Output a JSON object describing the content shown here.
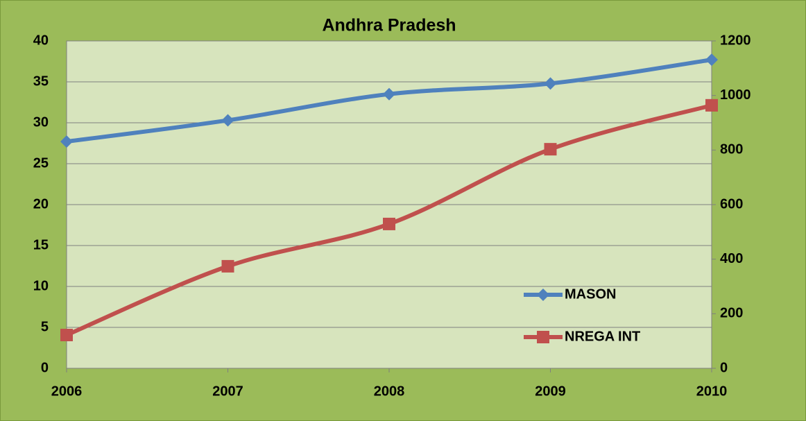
{
  "chart_data": {
    "type": "line",
    "title": "Andhra Pradesh",
    "x": [
      2006,
      2007,
      2008,
      2009,
      2010
    ],
    "xlim": [
      2006,
      2010
    ],
    "xticks": [
      2006,
      2007,
      2008,
      2009,
      2010
    ],
    "ylim": [
      0,
      40
    ],
    "yticks": [
      0,
      5,
      10,
      15,
      20,
      25,
      30,
      35,
      40
    ],
    "y2lim": [
      0,
      1200
    ],
    "y2ticks": [
      0,
      200,
      400,
      600,
      800,
      1000,
      1200
    ],
    "grid": true,
    "legend": "right",
    "series": [
      {
        "name": "MASON",
        "color": "#4f81bd",
        "marker": "diamond",
        "values": [
          27.7,
          30.3,
          33.5,
          34.8,
          37.7
        ]
      },
      {
        "name": "NREGA INT",
        "color": "#c0504d",
        "marker": "square",
        "axis": "y2",
        "values": [
          122,
          374,
          529,
          803,
          964
        ]
      }
    ]
  }
}
